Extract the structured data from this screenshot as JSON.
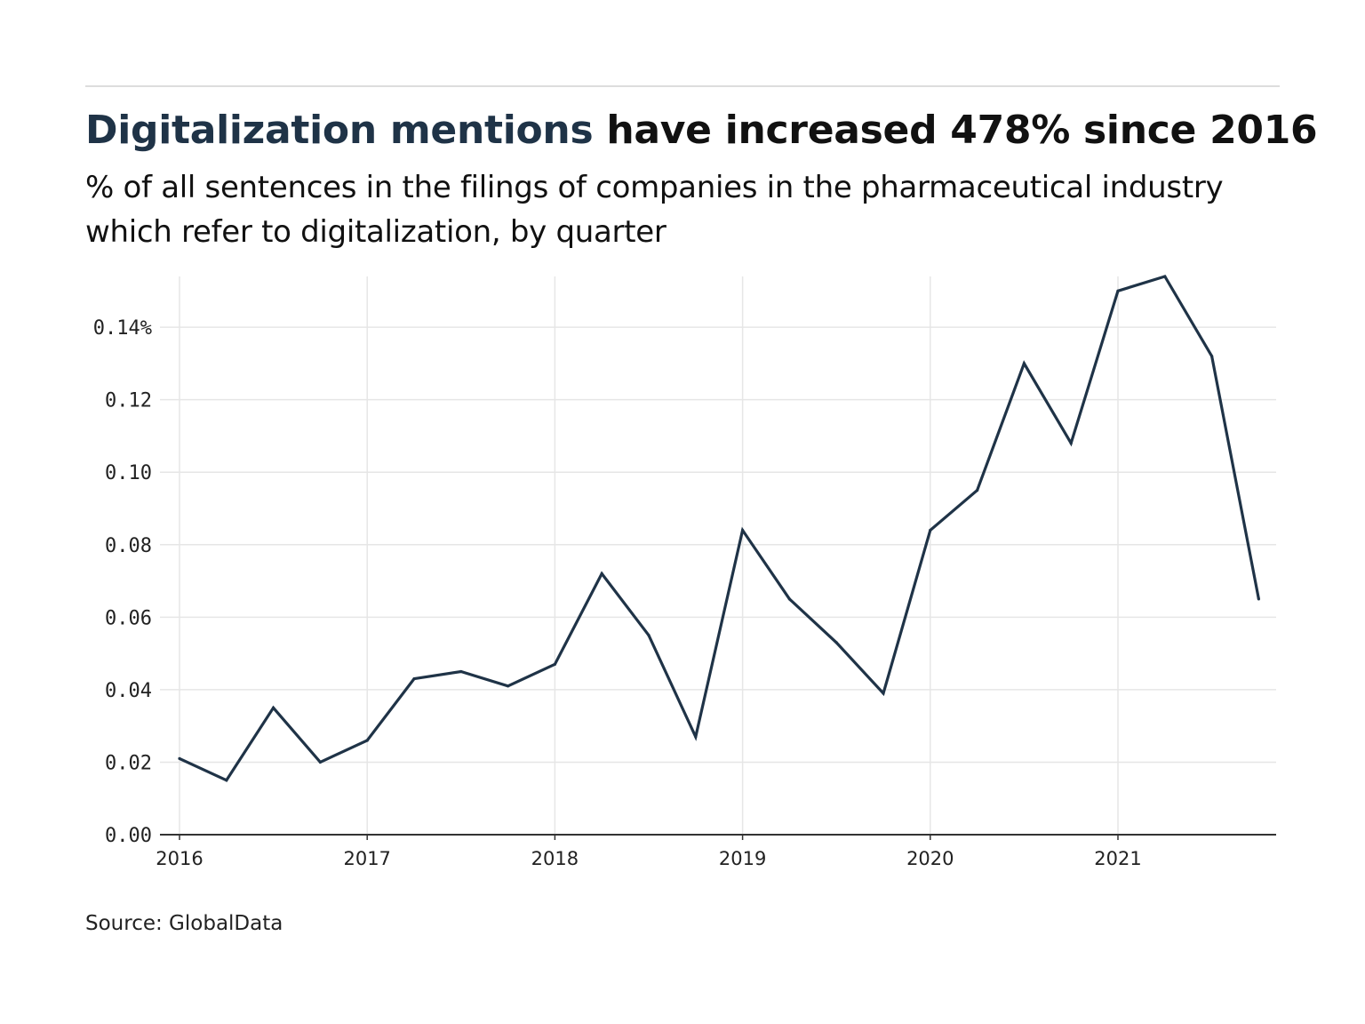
{
  "header": {
    "title_highlight": "Digitalization mentions",
    "title_rest": " have increased 478% since 2016",
    "subtitle": "% of all sentences in the filings of companies in the pharmaceutical industry which refer to digitalization, by quarter"
  },
  "footer": {
    "source": "Source: GlobalData"
  },
  "colors": {
    "line": "#1f3347",
    "grid": "#e6e6e6",
    "axis": "#333333",
    "title_highlight": "#1f3347"
  },
  "chart_data": {
    "type": "line",
    "title": "Digitalization mentions have increased 478% since 2016",
    "subtitle": "% of all sentences in the filings of companies in the pharmaceutical industry which refer to digitalization, by quarter",
    "xlabel": "",
    "ylabel": "",
    "x": [
      "2016-Q1",
      "2016-Q2",
      "2016-Q3",
      "2016-Q4",
      "2017-Q1",
      "2017-Q2",
      "2017-Q3",
      "2017-Q4",
      "2018-Q1",
      "2018-Q2",
      "2018-Q3",
      "2018-Q4",
      "2019-Q1",
      "2019-Q2",
      "2019-Q3",
      "2019-Q4",
      "2020-Q1",
      "2020-Q2",
      "2020-Q3",
      "2020-Q4",
      "2021-Q1",
      "2021-Q2",
      "2021-Q3",
      "2021-Q4"
    ],
    "series": [
      {
        "values": [
          0.021,
          0.015,
          0.035,
          0.02,
          0.026,
          0.043,
          0.045,
          0.041,
          0.047,
          0.072,
          0.055,
          0.027,
          0.084,
          0.065,
          0.053,
          0.039,
          0.084,
          0.095,
          0.13,
          0.108,
          0.15,
          0.154,
          0.132,
          0.065
        ]
      }
    ],
    "ylim": [
      0,
      0.154
    ],
    "yticks": [
      0.0,
      0.02,
      0.04,
      0.06,
      0.08,
      0.1,
      0.12,
      0.14
    ],
    "ytick_labels": [
      "0.00",
      "0.02",
      "0.04",
      "0.06",
      "0.08",
      "0.10",
      "0.12",
      "0.14%"
    ],
    "xtick_labels": [
      "2016",
      "2017",
      "2018",
      "2019",
      "2020",
      "2021"
    ],
    "grid": true,
    "legend": "none"
  }
}
